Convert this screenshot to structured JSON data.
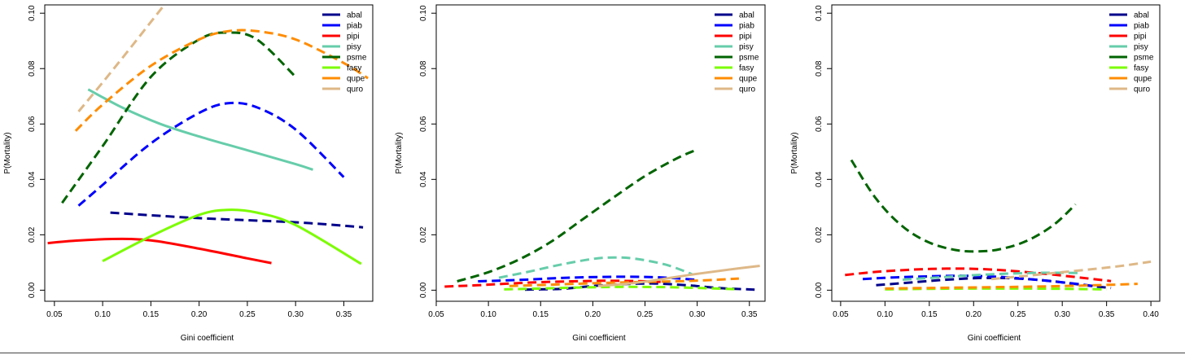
{
  "chart_data": [
    {
      "type": "line",
      "xlabel": "Gini coefficient",
      "ylabel": "P(Mortality)",
      "xlim": [
        0.04,
        0.38
      ],
      "ylim": [
        -0.004,
        0.103
      ],
      "xticks": [
        0.05,
        0.1,
        0.15,
        0.2,
        0.25,
        0.3,
        0.35
      ],
      "xtick_labels": [
        "0.05",
        "0.10",
        "0.15",
        "0.20",
        "0.25",
        "0.30",
        "0.35"
      ],
      "yticks": [
        0.0,
        0.02,
        0.04,
        0.06,
        0.08,
        0.1
      ],
      "ytick_labels": [
        "0.00",
        "0.02",
        "0.04",
        "0.06",
        "0.08",
        "0.10"
      ],
      "legend_position": "top-right",
      "grid": false,
      "series": [
        {
          "name": "abal",
          "color": "#00008b",
          "dashed": true,
          "x": [
            0.108,
            0.2,
            0.3,
            0.37
          ],
          "y": [
            0.028,
            0.026,
            0.0245,
            0.0227
          ]
        },
        {
          "name": "piab",
          "color": "#0000ff",
          "dashed": true,
          "x": [
            0.075,
            0.1,
            0.15,
            0.2,
            0.23,
            0.26,
            0.3,
            0.35
          ],
          "y": [
            0.0305,
            0.038,
            0.053,
            0.064,
            0.0675,
            0.066,
            0.058,
            0.0408
          ]
        },
        {
          "name": "pipi",
          "color": "#ff0000",
          "dashed": false,
          "x": [
            0.043,
            0.07,
            0.11,
            0.15,
            0.2,
            0.25,
            0.275
          ],
          "y": [
            0.017,
            0.0178,
            0.0185,
            0.018,
            0.015,
            0.0115,
            0.0098
          ]
        },
        {
          "name": "pisy",
          "color": "#66cdaa",
          "dashed": false,
          "x": [
            0.085,
            0.12,
            0.16,
            0.2,
            0.25,
            0.3,
            0.318
          ],
          "y": [
            0.0725,
            0.066,
            0.06,
            0.0555,
            0.0505,
            0.0455,
            0.0435
          ]
        },
        {
          "name": "psme",
          "color": "#006400",
          "dashed": true,
          "x": [
            0.058,
            0.1,
            0.15,
            0.2,
            0.23,
            0.26,
            0.3
          ],
          "y": [
            0.0315,
            0.052,
            0.077,
            0.0905,
            0.093,
            0.0905,
            0.077
          ]
        },
        {
          "name": "fasy",
          "color": "#7cfc00",
          "dashed": false,
          "x": [
            0.1,
            0.15,
            0.2,
            0.23,
            0.26,
            0.3,
            0.368
          ],
          "y": [
            0.0105,
            0.0195,
            0.0272,
            0.029,
            0.028,
            0.0235,
            0.0095
          ]
        },
        {
          "name": "qupe",
          "color": "#ff8c00",
          "dashed": true,
          "x": [
            0.072,
            0.1,
            0.15,
            0.2,
            0.23,
            0.26,
            0.3,
            0.35,
            0.375
          ],
          "y": [
            0.0575,
            0.067,
            0.081,
            0.0905,
            0.0935,
            0.0935,
            0.0905,
            0.082,
            0.0765
          ]
        },
        {
          "name": "quro",
          "color": "#deb887",
          "dashed": true,
          "x": [
            0.075,
            0.1,
            0.13,
            0.165
          ],
          "y": [
            0.0645,
            0.075,
            0.088,
            0.1035
          ]
        }
      ]
    },
    {
      "type": "line",
      "xlabel": "Gini coefficient",
      "ylabel": "P(Mortality)",
      "xlim": [
        0.05,
        0.365
      ],
      "ylim": [
        -0.004,
        0.103
      ],
      "xticks": [
        0.05,
        0.1,
        0.15,
        0.2,
        0.25,
        0.3,
        0.35
      ],
      "xtick_labels": [
        "0.05",
        "0.10",
        "0.15",
        "0.20",
        "0.25",
        "0.30",
        "0.35"
      ],
      "yticks": [
        0.0,
        0.02,
        0.04,
        0.06,
        0.08,
        0.1
      ],
      "ytick_labels": [
        "0.00",
        "0.02",
        "0.04",
        "0.06",
        "0.08",
        "0.10"
      ],
      "legend_position": "top-right",
      "grid": false,
      "series": [
        {
          "name": "abal",
          "color": "#00008b",
          "dashed": true,
          "x": [
            0.135,
            0.17,
            0.2,
            0.23,
            0.26,
            0.29,
            0.32,
            0.355
          ],
          "y": [
            0.0002,
            0.0005,
            0.0015,
            0.0022,
            0.0024,
            0.0018,
            0.0008,
            0.0002
          ]
        },
        {
          "name": "piab",
          "color": "#0000ff",
          "dashed": true,
          "x": [
            0.09,
            0.13,
            0.17,
            0.21,
            0.25,
            0.28,
            0.3
          ],
          "y": [
            0.0032,
            0.0037,
            0.0044,
            0.0048,
            0.0048,
            0.0043,
            0.0037
          ]
        },
        {
          "name": "pipi",
          "color": "#ff0000",
          "dashed": true,
          "x": [
            0.058,
            0.09,
            0.12,
            0.15,
            0.18,
            0.21,
            0.24,
            0.265
          ],
          "y": [
            0.0013,
            0.0018,
            0.0024,
            0.0029,
            0.0032,
            0.0034,
            0.0033,
            0.003
          ]
        },
        {
          "name": "pisy",
          "color": "#66cdaa",
          "dashed": true,
          "x": [
            0.11,
            0.14,
            0.17,
            0.2,
            0.22,
            0.24,
            0.27,
            0.295
          ],
          "y": [
            0.0045,
            0.0068,
            0.0093,
            0.0113,
            0.0118,
            0.0114,
            0.0092,
            0.0058
          ]
        },
        {
          "name": "psme",
          "color": "#006400",
          "dashed": true,
          "x": [
            0.07,
            0.1,
            0.13,
            0.16,
            0.19,
            0.22,
            0.25,
            0.28,
            0.298
          ],
          "y": [
            0.0032,
            0.0065,
            0.0112,
            0.0175,
            0.0255,
            0.0335,
            0.0412,
            0.0475,
            0.0505
          ]
        },
        {
          "name": "fasy",
          "color": "#7cfc00",
          "dashed": true,
          "x": [
            0.115,
            0.15,
            0.19,
            0.23,
            0.27,
            0.31,
            0.34
          ],
          "y": [
            0.0003,
            0.0006,
            0.001,
            0.0012,
            0.0011,
            0.0007,
            0.0003
          ]
        },
        {
          "name": "qupe",
          "color": "#ff8c00",
          "dashed": true,
          "x": [
            0.12,
            0.16,
            0.2,
            0.24,
            0.28,
            0.31,
            0.34
          ],
          "y": [
            0.0015,
            0.002,
            0.0025,
            0.0029,
            0.0032,
            0.0036,
            0.0042
          ]
        },
        {
          "name": "quro",
          "color": "#deb887",
          "dashed": false,
          "x": [
            0.205,
            0.24,
            0.27,
            0.3,
            0.33,
            0.36
          ],
          "y": [
            0.0015,
            0.0026,
            0.0042,
            0.0059,
            0.0074,
            0.0088
          ]
        }
      ]
    },
    {
      "type": "line",
      "xlabel": "Gini coefficient",
      "ylabel": "P(Mortality)",
      "xlim": [
        0.04,
        0.41
      ],
      "ylim": [
        -0.004,
        0.103
      ],
      "xticks": [
        0.05,
        0.1,
        0.15,
        0.2,
        0.25,
        0.3,
        0.35,
        0.4
      ],
      "xtick_labels": [
        "0.05",
        "0.10",
        "0.15",
        "0.20",
        "0.25",
        "0.30",
        "0.35",
        "0.40"
      ],
      "yticks": [
        0.0,
        0.02,
        0.04,
        0.06,
        0.08,
        0.1
      ],
      "ytick_labels": [
        "0.00",
        "0.02",
        "0.04",
        "0.06",
        "0.08",
        "0.10"
      ],
      "legend_position": "top-right",
      "grid": false,
      "series": [
        {
          "name": "abal",
          "color": "#00008b",
          "dashed": true,
          "x": [
            0.09,
            0.13,
            0.17,
            0.21,
            0.25,
            0.29,
            0.33,
            0.355
          ],
          "y": [
            0.0018,
            0.0028,
            0.0038,
            0.0044,
            0.0042,
            0.0032,
            0.0016,
            0.0008
          ]
        },
        {
          "name": "piab",
          "color": "#0000ff",
          "dashed": true,
          "x": [
            0.075,
            0.11,
            0.15,
            0.19,
            0.23,
            0.27,
            0.31,
            0.34
          ],
          "y": [
            0.004,
            0.0046,
            0.005,
            0.0052,
            0.0048,
            0.0038,
            0.0025,
            0.0013
          ]
        },
        {
          "name": "pipi",
          "color": "#ff0000",
          "dashed": true,
          "x": [
            0.055,
            0.09,
            0.13,
            0.17,
            0.21,
            0.25,
            0.29,
            0.33,
            0.355
          ],
          "y": [
            0.0055,
            0.0066,
            0.0074,
            0.0078,
            0.0076,
            0.0068,
            0.0056,
            0.0042,
            0.0033
          ]
        },
        {
          "name": "pisy",
          "color": "#66cdaa",
          "dashed": true,
          "x": [
            0.12,
            0.16,
            0.2,
            0.24,
            0.28,
            0.32
          ],
          "y": [
            0.0038,
            0.0046,
            0.0054,
            0.006,
            0.0063,
            0.0062
          ]
        },
        {
          "name": "psme",
          "color": "#006400",
          "dashed": true,
          "x": [
            0.062,
            0.09,
            0.12,
            0.15,
            0.18,
            0.205,
            0.23,
            0.26,
            0.29,
            0.315
          ],
          "y": [
            0.047,
            0.033,
            0.023,
            0.0172,
            0.0145,
            0.014,
            0.0148,
            0.0178,
            0.0235,
            0.031
          ]
        },
        {
          "name": "fasy",
          "color": "#7cfc00",
          "dashed": true,
          "x": [
            0.1,
            0.15,
            0.2,
            0.25,
            0.3,
            0.35
          ],
          "y": [
            0.0003,
            0.0005,
            0.0006,
            0.0006,
            0.0005,
            0.0003
          ]
        },
        {
          "name": "qupe",
          "color": "#ff8c00",
          "dashed": true,
          "x": [
            0.1,
            0.15,
            0.2,
            0.25,
            0.3,
            0.35,
            0.385
          ],
          "y": [
            0.0006,
            0.0008,
            0.001,
            0.0012,
            0.0015,
            0.0019,
            0.0023
          ]
        },
        {
          "name": "quro",
          "color": "#deb887",
          "dashed": true,
          "x": [
            0.22,
            0.26,
            0.3,
            0.34,
            0.37,
            0.4
          ],
          "y": [
            0.004,
            0.0052,
            0.0065,
            0.0078,
            0.0089,
            0.0103
          ]
        }
      ]
    }
  ]
}
